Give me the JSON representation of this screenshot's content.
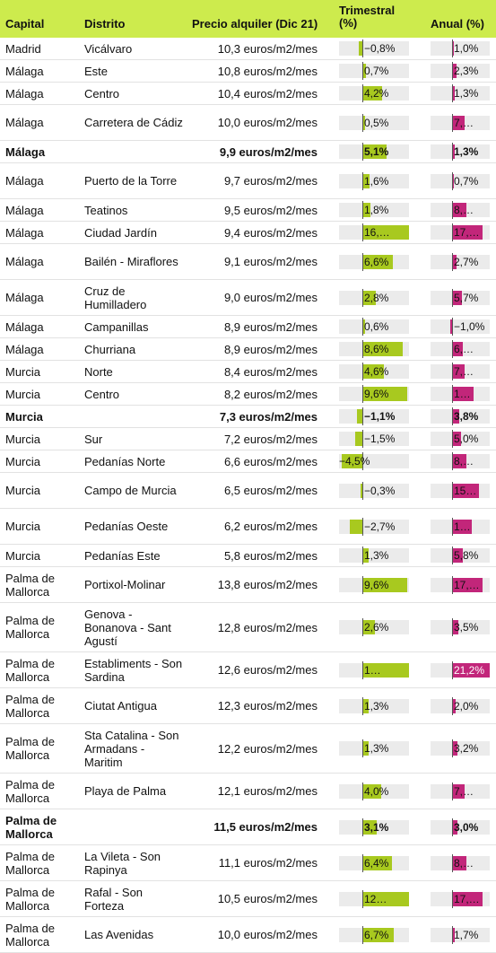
{
  "header": {
    "capital": "Capital",
    "distrito": "Distrito",
    "precio": "Precio alquiler (Dic 21)",
    "trimestral": "Trimestral (%)",
    "anual": "Anual (%)"
  },
  "colors": {
    "header_bg": "#cdeb4d",
    "trimestral_bar": "#a8c91f",
    "anual_bar": "#c2267a"
  },
  "rows": [
    {
      "capital": "Madrid",
      "distrito": "Vicálvaro",
      "precio": "10,3 euros/m2/mes",
      "tri_label": "−0,8%",
      "tri_value": -0.8,
      "anu_label": "1,0%",
      "anu_value": 1.0,
      "bold": false
    },
    {
      "capital": "Málaga",
      "distrito": "Este",
      "precio": "10,8 euros/m2/mes",
      "tri_label": "0,7%",
      "tri_value": 0.7,
      "anu_label": "2,3%",
      "anu_value": 2.3,
      "bold": false
    },
    {
      "capital": "Málaga",
      "distrito": "Centro",
      "precio": "10,4 euros/m2/mes",
      "tri_label": "4,2%",
      "tri_value": 4.2,
      "anu_label": "1,3%",
      "anu_value": 1.3,
      "bold": false
    },
    {
      "capital": "Málaga",
      "distrito": "Carretera de Cádiz",
      "precio": "10,0 euros/m2/mes",
      "tri_label": "0,5%",
      "tri_value": 0.5,
      "anu_label": "7,…",
      "anu_value": 7,
      "bold": false
    },
    {
      "capital": "Málaga",
      "distrito": "",
      "precio": "9,9 euros/m2/mes",
      "tri_label": "5,1%",
      "tri_value": 5.1,
      "anu_label": "1,3%",
      "anu_value": 1.3,
      "bold": true
    },
    {
      "capital": "Málaga",
      "distrito": "Puerto de la Torre",
      "precio": "9,7 euros/m2/mes",
      "tri_label": "1,6%",
      "tri_value": 1.6,
      "anu_label": "0,7%",
      "anu_value": 0.7,
      "bold": false
    },
    {
      "capital": "Málaga",
      "distrito": "Teatinos",
      "precio": "9,5 euros/m2/mes",
      "tri_label": "1,8%",
      "tri_value": 1.8,
      "anu_label": "8,…",
      "anu_value": 8,
      "bold": false
    },
    {
      "capital": "Málaga",
      "distrito": "Ciudad Jardín",
      "precio": "9,4 euros/m2/mes",
      "tri_label": "16,…",
      "tri_value": 16,
      "anu_label": "17,…",
      "anu_value": 17,
      "bold": false
    },
    {
      "capital": "Málaga",
      "distrito": "Bailén - Miraflores",
      "precio": "9,1 euros/m2/mes",
      "tri_label": "6,6%",
      "tri_value": 6.6,
      "anu_label": "2,7%",
      "anu_value": 2.7,
      "bold": false
    },
    {
      "capital": "Málaga",
      "distrito": "Cruz de Humilladero",
      "precio": "9,0 euros/m2/mes",
      "tri_label": "2,8%",
      "tri_value": 2.8,
      "anu_label": "5,7%",
      "anu_value": 5.7,
      "bold": false
    },
    {
      "capital": "Málaga",
      "distrito": "Campanillas",
      "precio": "8,9 euros/m2/mes",
      "tri_label": "0,6%",
      "tri_value": 0.6,
      "anu_label": "−1,0%",
      "anu_value": -1.0,
      "bold": false
    },
    {
      "capital": "Málaga",
      "distrito": "Churriana",
      "precio": "8,9 euros/m2/mes",
      "tri_label": "8,6%",
      "tri_value": 8.6,
      "anu_label": "6,…",
      "anu_value": 6,
      "bold": false
    },
    {
      "capital": "Murcia",
      "distrito": "Norte",
      "precio": "8,4 euros/m2/mes",
      "tri_label": "4,6%",
      "tri_value": 4.6,
      "anu_label": "7,…",
      "anu_value": 7,
      "bold": false
    },
    {
      "capital": "Murcia",
      "distrito": "Centro",
      "precio": "8,2 euros/m2/mes",
      "tri_label": "9,6%",
      "tri_value": 9.6,
      "anu_label": "1…",
      "anu_value": 12,
      "bold": false
    },
    {
      "capital": "Murcia",
      "distrito": "",
      "precio": "7,3 euros/m2/mes",
      "tri_label": "−1,1%",
      "tri_value": -1.1,
      "anu_label": "3,8%",
      "anu_value": 3.8,
      "bold": true
    },
    {
      "capital": "Murcia",
      "distrito": "Sur",
      "precio": "7,2 euros/m2/mes",
      "tri_label": "−1,5%",
      "tri_value": -1.5,
      "anu_label": "5,0%",
      "anu_value": 5.0,
      "bold": false
    },
    {
      "capital": "Murcia",
      "distrito": "Pedanías Norte",
      "precio": "6,6 euros/m2/mes",
      "tri_label": "−4,5%",
      "tri_value": -4.5,
      "anu_label": "8,…",
      "anu_value": 8,
      "bold": false
    },
    {
      "capital": "Murcia",
      "distrito": "Campo de Murcia",
      "precio": "6,5 euros/m2/mes",
      "tri_label": "−0,3%",
      "tri_value": -0.3,
      "anu_label": "15…",
      "anu_value": 15,
      "bold": false
    },
    {
      "capital": "Murcia",
      "distrito": "Pedanías Oeste",
      "precio": "6,2 euros/m2/mes",
      "tri_label": "−2,7%",
      "tri_value": -2.7,
      "anu_label": "1…",
      "anu_value": 11,
      "bold": false
    },
    {
      "capital": "Murcia",
      "distrito": "Pedanías Este",
      "precio": "5,8 euros/m2/mes",
      "tri_label": "1,3%",
      "tri_value": 1.3,
      "anu_label": "5,8%",
      "anu_value": 5.8,
      "bold": false
    },
    {
      "capital": "Palma de Mallorca",
      "distrito": "Portixol-Molinar",
      "precio": "13,8 euros/m2/mes",
      "tri_label": "9,6%",
      "tri_value": 9.6,
      "anu_label": "17,…",
      "anu_value": 17,
      "bold": false
    },
    {
      "capital": "Palma de Mallorca",
      "distrito": "Genova - Bonanova - Sant Agustí",
      "precio": "12,8 euros/m2/mes",
      "tri_label": "2,6%",
      "tri_value": 2.6,
      "anu_label": "3,5%",
      "anu_value": 3.5,
      "bold": false
    },
    {
      "capital": "Palma de Mallorca",
      "distrito": "Establiments - Son Sardina",
      "precio": "12,6 euros/m2/mes",
      "tri_label": "1…",
      "tri_value": 11,
      "anu_label": "21,2%",
      "anu_value": 21.2,
      "bold": false
    },
    {
      "capital": "Palma de Mallorca",
      "distrito": "Ciutat Antigua",
      "precio": "12,3 euros/m2/mes",
      "tri_label": "1,3%",
      "tri_value": 1.3,
      "anu_label": "2,0%",
      "anu_value": 2.0,
      "bold": false
    },
    {
      "capital": "Palma de Mallorca",
      "distrito": "Sta Catalina - Son Armadans - Maritim",
      "precio": "12,2 euros/m2/mes",
      "tri_label": "1,3%",
      "tri_value": 1.3,
      "anu_label": "3,2%",
      "anu_value": 3.2,
      "bold": false
    },
    {
      "capital": "Palma de Mallorca",
      "distrito": "Playa de Palma",
      "precio": "12,1 euros/m2/mes",
      "tri_label": "4,0%",
      "tri_value": 4.0,
      "anu_label": "7,…",
      "anu_value": 7,
      "bold": false
    },
    {
      "capital": "Palma de Mallorca",
      "distrito": "",
      "precio": "11,5 euros/m2/mes",
      "tri_label": "3,1%",
      "tri_value": 3.1,
      "anu_label": "3,0%",
      "anu_value": 3.0,
      "bold": true
    },
    {
      "capital": "Palma de Mallorca",
      "distrito": "La Vileta - Son Rapinya",
      "precio": "11,1 euros/m2/mes",
      "tri_label": "6,4%",
      "tri_value": 6.4,
      "anu_label": "8,…",
      "anu_value": 8,
      "bold": false
    },
    {
      "capital": "Palma de Mallorca",
      "distrito": "Rafal - Son Forteza",
      "precio": "10,5 euros/m2/mes",
      "tri_label": "12…",
      "tri_value": 12,
      "anu_label": "17,…",
      "anu_value": 17,
      "bold": false
    },
    {
      "capital": "Palma de Mallorca",
      "distrito": "Las Avenidas",
      "precio": "10,0 euros/m2/mes",
      "tri_label": "6,7%",
      "tri_value": 6.7,
      "anu_label": "1,7%",
      "anu_value": 1.7,
      "bold": false
    }
  ]
}
